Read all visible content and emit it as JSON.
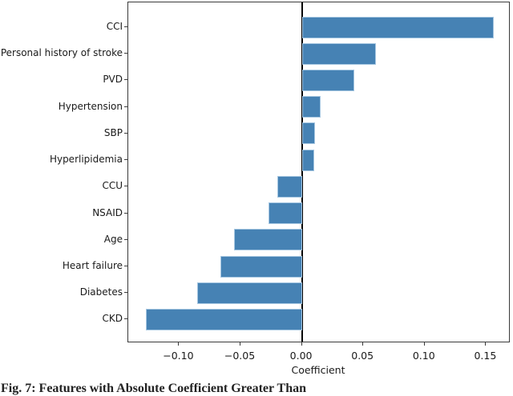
{
  "chart_data": {
    "type": "bar",
    "orientation": "horizontal",
    "title": "",
    "xlabel": "Coefficient",
    "ylabel": "",
    "categories": [
      "CCI",
      "Personal history of stroke",
      "PVD",
      "Hypertension",
      "SBP",
      "Hyperlipidemia",
      "CCU",
      "NSAID",
      "Age",
      "Heart failure",
      "Diabetes",
      "CKD"
    ],
    "values": [
      0.156,
      0.06,
      0.043,
      0.015,
      0.011,
      0.01,
      -0.02,
      -0.027,
      -0.055,
      -0.066,
      -0.085,
      -0.127
    ],
    "xlim": [
      -0.1414,
      0.17
    ],
    "x_ticks": [
      -0.1,
      -0.05,
      0.0,
      0.05,
      0.1,
      0.15
    ],
    "x_tick_labels": [
      "−0.10",
      "−0.05",
      "0.00",
      "0.05",
      "0.10",
      "0.15"
    ],
    "grid": false,
    "legend": null,
    "zero_line": true,
    "bar_color": "#4682b4",
    "bar_edge_color": "#a5c6e1",
    "axis_color": "#3a3a3a",
    "zero_line_color": "#000000"
  },
  "caption": {
    "text": "Fig. 7: Features with Absolute Coefficient Greater Than",
    "clipped": true
  }
}
